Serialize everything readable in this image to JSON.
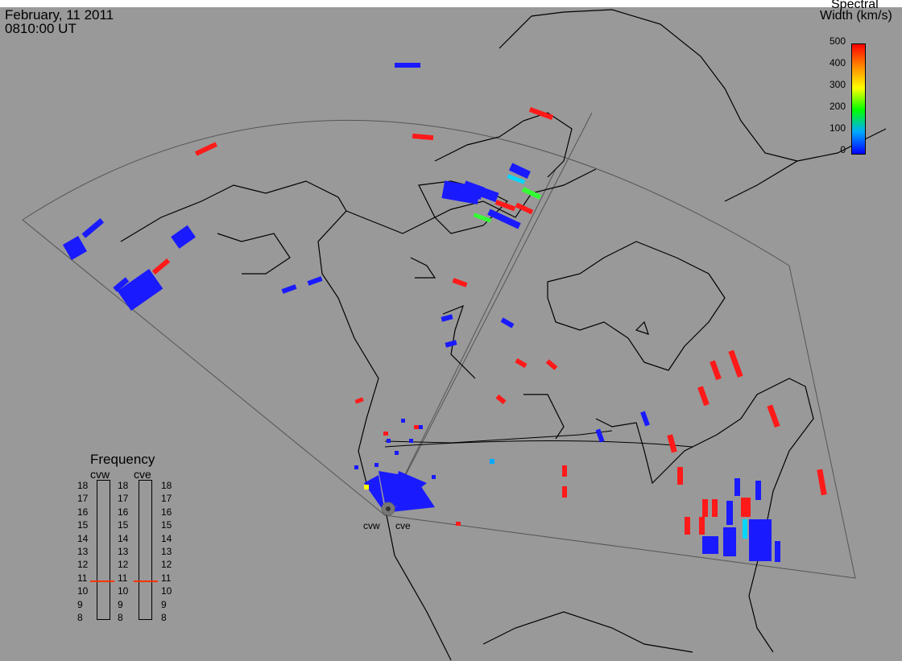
{
  "header": {
    "date": "February, 11 2011",
    "time": "0810:00 UT"
  },
  "colorbar": {
    "title_line1": "Spectral",
    "title_line2": "Width (km/s)",
    "ticks": [
      "500",
      "400",
      "300",
      "200",
      "100",
      "0"
    ],
    "colors": [
      "#0000ff",
      "#00aaff",
      "#00ff00",
      "#ffff00",
      "#ff8800",
      "#ff0000"
    ]
  },
  "frequency": {
    "title": "Frequency",
    "radar_labels": [
      "cvw",
      "cve"
    ],
    "ticks": [
      "18",
      "17",
      "16",
      "15",
      "14",
      "13",
      "12",
      "11",
      "10",
      "9",
      "8"
    ],
    "selected_mhz": 10.8,
    "marker_color": "#ff3300"
  },
  "sites": {
    "west": "cvw",
    "east": "cve"
  },
  "map": {
    "background": "#999999",
    "coastline_color": "#000000",
    "fov_color": "#555555"
  }
}
